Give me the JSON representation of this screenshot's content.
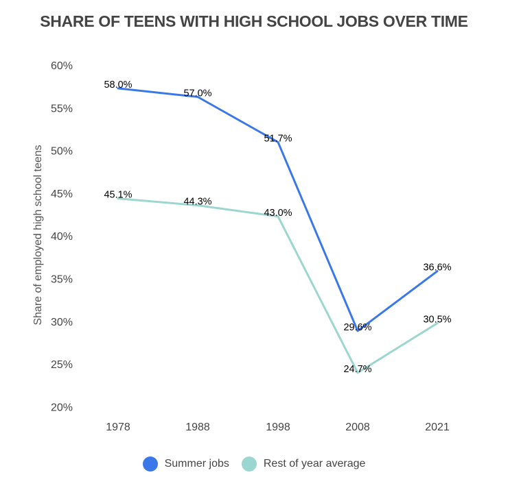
{
  "chart_data": {
    "type": "line",
    "title": "SHARE OF TEENS WITH HIGH SCHOOL JOBS OVER TIME",
    "xlabel": "",
    "ylabel": "Share of employed high school teens",
    "categories": [
      "1978",
      "1988",
      "1998",
      "2008",
      "2021"
    ],
    "yticks": [
      "20%",
      "25%",
      "30%",
      "35%",
      "40%",
      "45%",
      "50%",
      "55%",
      "60%"
    ],
    "ylim": [
      20,
      60
    ],
    "grid": false,
    "legend_position": "bottom",
    "series": [
      {
        "name": "Summer jobs",
        "color": "#3a78ea",
        "values": [
          58.0,
          57.0,
          51.7,
          29.6,
          36.6
        ],
        "labels": [
          "58.0%",
          "57.0%",
          "51.7%",
          "29.6%",
          "36.6%"
        ]
      },
      {
        "name": "Rest of year average",
        "color": "#9bd6d0",
        "values": [
          45.1,
          44.3,
          43.0,
          24.7,
          30.5
        ],
        "labels": [
          "45.1%",
          "44.3%",
          "43.0%",
          "24.7%",
          "30.5%"
        ]
      }
    ]
  }
}
